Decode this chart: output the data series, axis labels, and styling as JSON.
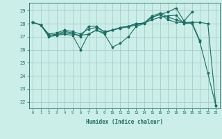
{
  "xlabel": "Humidex (Indice chaleur)",
  "bg_color": "#cceee8",
  "grid_color": "#aaccc8",
  "line_color": "#1a6e62",
  "xlim": [
    -0.5,
    23.5
  ],
  "ylim": [
    21.5,
    29.6
  ],
  "yticks": [
    22,
    23,
    24,
    25,
    26,
    27,
    28,
    29
  ],
  "xticks": [
    0,
    1,
    2,
    3,
    4,
    5,
    6,
    7,
    8,
    9,
    10,
    11,
    12,
    13,
    14,
    15,
    16,
    17,
    18,
    19,
    20,
    21,
    22,
    23
  ],
  "series": [
    {
      "x": [
        0,
        1,
        2,
        3,
        4,
        5,
        6,
        7,
        8,
        9,
        10,
        11,
        12,
        13,
        14,
        15,
        16,
        17,
        18,
        19,
        20,
        21,
        22,
        23
      ],
      "y": [
        28.1,
        27.9,
        27.0,
        27.1,
        27.2,
        27.1,
        26.0,
        27.2,
        27.5,
        27.2,
        26.2,
        26.5,
        27.0,
        27.8,
        28.0,
        28.5,
        28.7,
        28.3,
        28.1,
        28.1,
        28.0,
        26.6,
        24.2,
        21.7
      ]
    },
    {
      "x": [
        0,
        1,
        2,
        3,
        4,
        5,
        6,
        7,
        8,
        9,
        10,
        11,
        12,
        13,
        14,
        15,
        16,
        17,
        18,
        19,
        20,
        21,
        22,
        23
      ],
      "y": [
        28.1,
        27.9,
        27.1,
        27.15,
        27.3,
        27.2,
        27.1,
        27.2,
        27.5,
        27.3,
        27.5,
        27.7,
        27.8,
        28.0,
        28.05,
        28.3,
        28.5,
        28.6,
        28.65,
        28.0,
        28.1,
        28.1,
        28.0,
        21.7
      ]
    },
    {
      "x": [
        0,
        1,
        2,
        3,
        4,
        5,
        6,
        7,
        8,
        9,
        10,
        11,
        12,
        13,
        14,
        15,
        16,
        17,
        18,
        19,
        20
      ],
      "y": [
        28.1,
        27.9,
        27.1,
        27.2,
        27.4,
        27.3,
        27.0,
        27.8,
        27.8,
        27.35,
        27.5,
        27.65,
        27.75,
        27.9,
        28.05,
        28.5,
        28.7,
        28.9,
        29.2,
        28.2,
        28.9
      ]
    },
    {
      "x": [
        0,
        1,
        2,
        3,
        4,
        5,
        6,
        7,
        8,
        9,
        10,
        11,
        12,
        13,
        14,
        15,
        16,
        17,
        18,
        19,
        20,
        21
      ],
      "y": [
        28.1,
        27.9,
        27.2,
        27.3,
        27.5,
        27.4,
        27.2,
        27.6,
        27.7,
        27.4,
        27.5,
        27.7,
        27.8,
        28.0,
        28.05,
        28.6,
        28.8,
        28.5,
        28.3,
        28.1,
        28.1,
        26.7
      ]
    }
  ]
}
